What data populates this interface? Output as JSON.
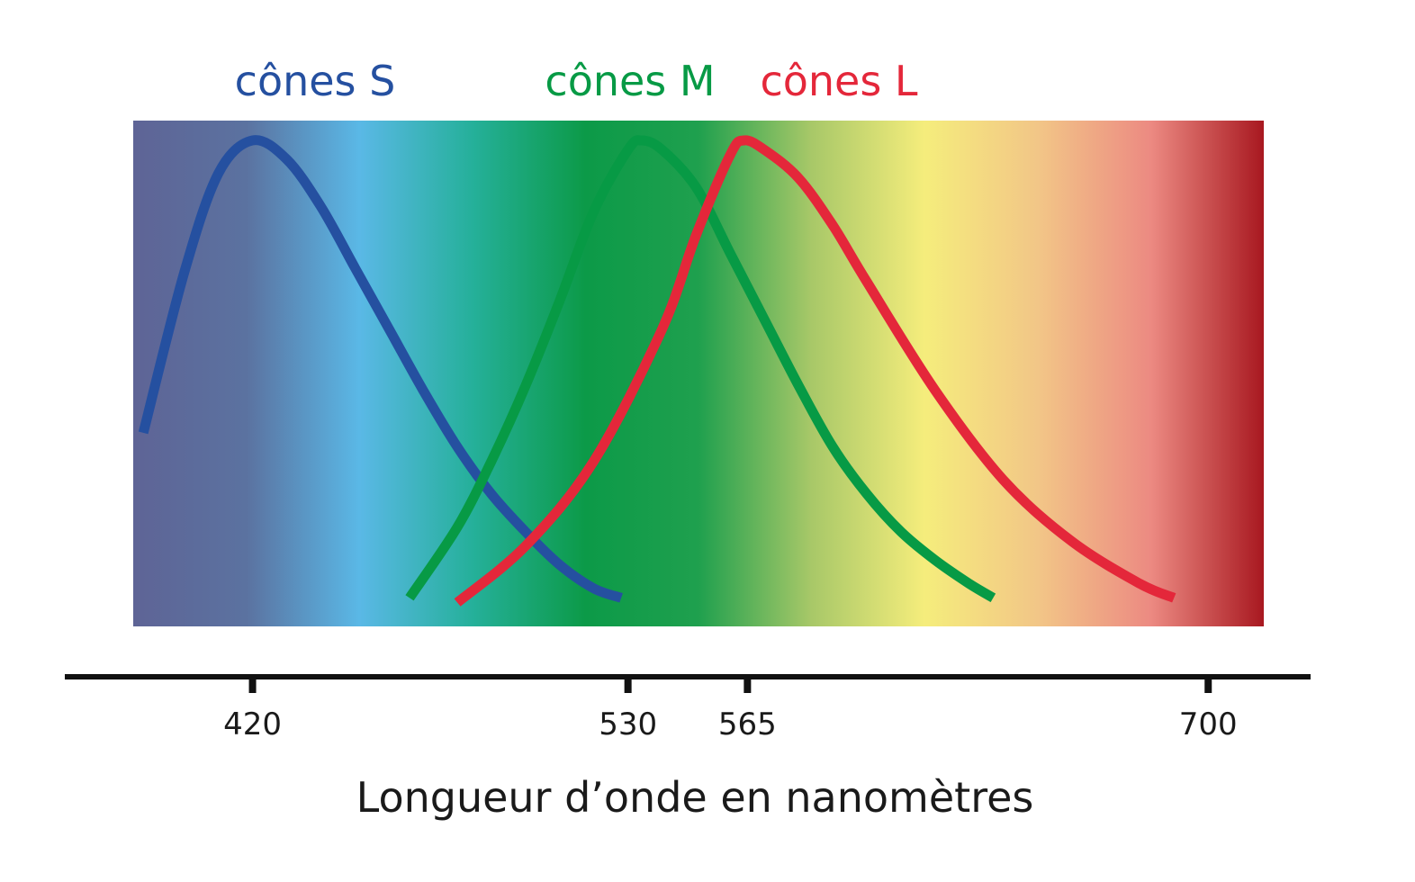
{
  "chart_data": {
    "type": "line",
    "xlabel": "Longueur d’onde en nanomètres",
    "ylabel": "",
    "x_ticks": [
      420,
      530,
      565,
      700
    ],
    "xlim": [
      365,
      730
    ],
    "ylim": [
      0,
      1
    ],
    "grid": false,
    "legend": "top, labels above each curve",
    "background_spectrum": {
      "from_nm": 380,
      "to_nm": 710,
      "colors": [
        "#5e6496",
        "#5b72a0",
        "#5ab8e6",
        "#25b09a",
        "#0c9a48",
        "#1fa04e",
        "#a8c868",
        "#f5ed7c",
        "#f2c687",
        "#ec8a82",
        "#a81820"
      ]
    },
    "series": [
      {
        "name": "cônes S",
        "color": "#2550a0",
        "peak_nm": 420,
        "x": [
          388,
          400,
          410,
          420,
          430,
          440,
          450,
          460,
          470,
          480,
          490,
          500,
          510,
          520,
          528
        ],
        "y": [
          0.38,
          0.72,
          0.93,
          1.0,
          0.96,
          0.86,
          0.73,
          0.6,
          0.47,
          0.35,
          0.25,
          0.17,
          0.1,
          0.05,
          0.03
        ]
      },
      {
        "name": "cônes M",
        "color": "#079a45",
        "peak_nm": 534,
        "x": [
          466,
          480,
          490,
          500,
          510,
          520,
          530,
          534,
          540,
          550,
          560,
          570,
          580,
          590,
          600,
          610,
          620,
          630,
          637
        ],
        "y": [
          0.03,
          0.18,
          0.32,
          0.48,
          0.66,
          0.85,
          0.98,
          1.0,
          0.98,
          0.9,
          0.76,
          0.62,
          0.48,
          0.35,
          0.25,
          0.17,
          0.11,
          0.06,
          0.03
        ]
      },
      {
        "name": "cônes L",
        "color": "#e4273a",
        "peak_nm": 564,
        "x": [
          480,
          500,
          520,
          540,
          550,
          560,
          564,
          570,
          580,
          590,
          600,
          620,
          640,
          660,
          680,
          690
        ],
        "y": [
          0.02,
          0.14,
          0.32,
          0.6,
          0.8,
          0.97,
          1.0,
          0.98,
          0.92,
          0.82,
          0.7,
          0.47,
          0.28,
          0.15,
          0.06,
          0.03
        ]
      }
    ]
  }
}
